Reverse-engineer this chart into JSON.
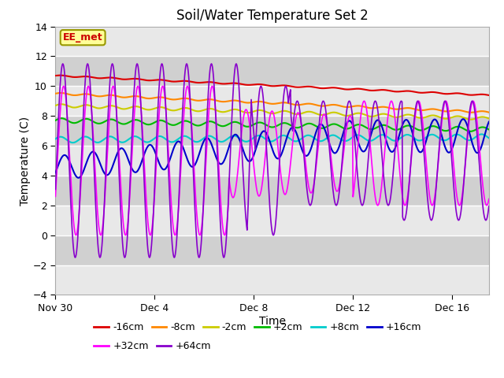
{
  "title": "Soil/Water Temperature Set 2",
  "xlabel": "Time",
  "ylabel": "Temperature (C)",
  "ylim": [
    -4,
    14
  ],
  "yticks": [
    -4,
    -2,
    0,
    2,
    4,
    6,
    8,
    10,
    12,
    14
  ],
  "background_color": "#ffffff",
  "plot_bg_color": "#d8d8d8",
  "grid_color": "#ffffff",
  "band_color_light": "#e8e8e8",
  "band_color_dark": "#d0d0d0",
  "xtick_labels": [
    "Nov 30",
    "Dec 4",
    "Dec 8",
    "Dec 12",
    "Dec 16"
  ],
  "xtick_positions": [
    0,
    4,
    8,
    12,
    16
  ],
  "n_days": 17.5,
  "series": [
    {
      "label": "-16cm",
      "color": "#dd0000"
    },
    {
      "label": "-8cm",
      "color": "#ff8800"
    },
    {
      "label": "-2cm",
      "color": "#cccc00"
    },
    {
      "label": "+2cm",
      "color": "#00bb00"
    },
    {
      "label": "+8cm",
      "color": "#00cccc"
    },
    {
      "label": "+16cm",
      "color": "#0000cc"
    },
    {
      "label": "+32cm",
      "color": "#ff00ff"
    },
    {
      "label": "+64cm",
      "color": "#8800cc"
    }
  ],
  "EE_met_label": "EE_met",
  "EE_met_color": "#cc0000",
  "EE_met_bg": "#ffff99",
  "EE_met_border": "#999900"
}
